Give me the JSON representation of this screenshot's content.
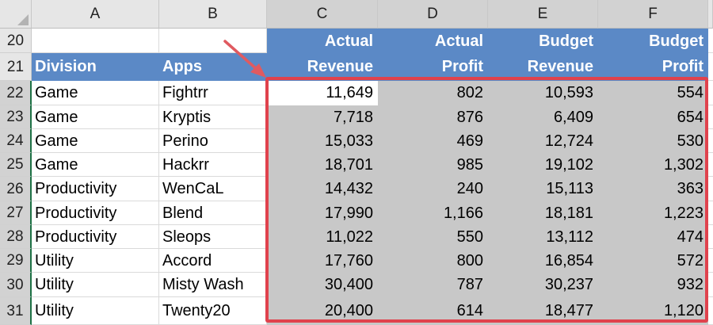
{
  "columns": [
    "A",
    "B",
    "C",
    "D",
    "E",
    "F"
  ],
  "rows": [
    "20",
    "21",
    "22",
    "23",
    "24",
    "25",
    "26",
    "27",
    "28",
    "29",
    "30",
    "31"
  ],
  "header_row20": [
    "",
    "",
    "Actual",
    "Actual",
    "Budget",
    "Budget"
  ],
  "header_row21": [
    "Division",
    "Apps",
    "Revenue",
    "Profit",
    "Revenue",
    "Profit"
  ],
  "data": [
    [
      "Game",
      "Fightrr",
      "11,649",
      "802",
      "10,593",
      "554"
    ],
    [
      "Game",
      "Kryptis",
      "7,718",
      "876",
      "6,409",
      "654"
    ],
    [
      "Game",
      "Perino",
      "15,033",
      "469",
      "12,724",
      "530"
    ],
    [
      "Game",
      "Hackrr",
      "18,701",
      "985",
      "19,102",
      "1,302"
    ],
    [
      "Productivity",
      "WenCaL",
      "14,432",
      "240",
      "15,113",
      "363"
    ],
    [
      "Productivity",
      "Blend",
      "17,990",
      "1,166",
      "18,181",
      "1,223"
    ],
    [
      "Productivity",
      "Sleops",
      "11,022",
      "550",
      "13,112",
      "474"
    ],
    [
      "Utility",
      "Accord",
      "17,760",
      "800",
      "16,854",
      "572"
    ],
    [
      "Utility",
      "Misty Wash",
      "30,400",
      "787",
      "30,237",
      "932"
    ],
    [
      "Utility",
      "Twenty20",
      "20,400",
      "614",
      "18,477",
      "1,120"
    ]
  ],
  "colors": {
    "header_blue": "#5b89c6",
    "selection_gray": "#c8c8c8",
    "highlight_red": "#e0424d",
    "arrow_red": "#e05a60"
  }
}
